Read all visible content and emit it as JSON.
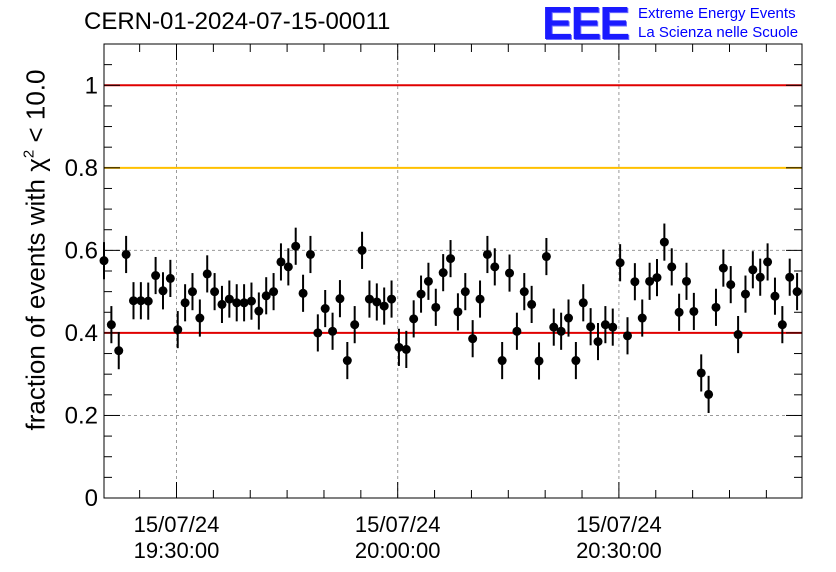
{
  "chart_data": {
    "type": "scatter",
    "title": "CERN-01-2024-07-15-00011",
    "ylabel": {
      "prefix": "fraction of events with ",
      "symbol": "χ",
      "sup": "2",
      "suffix": " < 10.0"
    },
    "xlabel": "",
    "xlim": [
      "19:20:10",
      "20:54:50"
    ],
    "ylim": [
      0,
      1.1
    ],
    "yticks": [
      "0",
      "0.2",
      "0.4",
      "0.6",
      "0.8",
      "1"
    ],
    "xticks": [
      {
        "time": "19:30:00",
        "date": "15/07/24",
        "clock": "19:30:00"
      },
      {
        "time": "20:00:00",
        "date": "15/07/24",
        "clock": "20:00:00"
      },
      {
        "time": "20:30:00",
        "date": "15/07/24",
        "clock": "20:30:00"
      }
    ],
    "grid": true,
    "reference_lines": [
      {
        "y": 1.0,
        "color": "#e00000"
      },
      {
        "y": 0.8,
        "color": "#ffc000"
      },
      {
        "y": 0.4,
        "color": "#e00000"
      }
    ],
    "series": [
      {
        "marker": "circle",
        "color": "#000000",
        "x": [
          "19:20:10",
          "19:21:10",
          "19:22:10",
          "19:23:10",
          "19:24:10",
          "19:25:10",
          "19:26:10",
          "19:27:10",
          "19:28:10",
          "19:29:10",
          "19:30:10",
          "19:31:10",
          "19:32:10",
          "19:33:10",
          "19:34:10",
          "19:35:10",
          "19:36:10",
          "19:37:10",
          "19:38:10",
          "19:39:10",
          "19:40:10",
          "19:41:10",
          "19:42:10",
          "19:43:10",
          "19:44:10",
          "19:45:10",
          "19:46:10",
          "19:47:10",
          "19:48:10",
          "19:49:10",
          "19:50:10",
          "19:51:10",
          "19:52:10",
          "19:53:10",
          "19:54:10",
          "19:55:10",
          "19:56:10",
          "19:57:10",
          "19:58:10",
          "19:59:10",
          "20:00:10",
          "20:01:10",
          "20:02:10",
          "20:03:10",
          "20:04:10",
          "20:05:10",
          "20:06:10",
          "20:07:10",
          "20:08:10",
          "20:09:10",
          "20:10:10",
          "20:11:10",
          "20:12:10",
          "20:13:10",
          "20:14:10",
          "20:15:10",
          "20:16:10",
          "20:17:10",
          "20:18:10",
          "20:19:10",
          "20:20:10",
          "20:21:10",
          "20:22:10",
          "20:23:10",
          "20:24:10",
          "20:25:10",
          "20:26:10",
          "20:27:10",
          "20:28:10",
          "20:29:10",
          "20:30:10",
          "20:31:10",
          "20:32:10",
          "20:33:10",
          "20:34:10",
          "20:35:10",
          "20:36:10",
          "20:37:10",
          "20:38:10",
          "20:39:10",
          "20:40:10",
          "20:41:10",
          "20:42:10",
          "20:43:10",
          "20:44:10",
          "20:45:10",
          "20:46:10",
          "20:47:10",
          "20:48:10",
          "20:49:10",
          "20:50:10",
          "20:51:10",
          "20:52:10",
          "20:53:10",
          "20:54:10"
        ],
        "y": [
          0.575,
          0.42,
          0.357,
          0.59,
          0.478,
          0.478,
          0.477,
          0.539,
          0.502,
          0.532,
          0.408,
          0.473,
          0.5,
          0.436,
          0.543,
          0.5,
          0.469,
          0.482,
          0.473,
          0.473,
          0.477,
          0.453,
          0.49,
          0.5,
          0.572,
          0.56,
          0.61,
          0.496,
          0.59,
          0.4,
          0.459,
          0.404,
          0.483,
          0.333,
          0.42,
          0.6,
          0.482,
          0.475,
          0.465,
          0.482,
          0.365,
          0.36,
          0.434,
          0.494,
          0.525,
          0.462,
          0.546,
          0.58,
          0.451,
          0.5,
          0.386,
          0.482,
          0.59,
          0.56,
          0.333,
          0.545,
          0.404,
          0.5,
          0.469,
          0.332,
          0.585,
          0.414,
          0.404,
          0.436,
          0.333,
          0.473,
          0.415,
          0.379,
          0.42,
          0.414,
          0.57,
          0.393,
          0.524,
          0.436,
          0.525,
          0.534,
          0.62,
          0.56,
          0.45,
          0.525,
          0.452,
          0.303,
          0.251,
          0.462,
          0.557,
          0.517,
          0.396,
          0.494,
          0.553,
          0.535,
          0.572,
          0.489,
          0.42,
          0.535,
          0.5
        ],
        "yerr": [
          0.045,
          0.045,
          0.045,
          0.045,
          0.045,
          0.045,
          0.045,
          0.045,
          0.045,
          0.045,
          0.045,
          0.045,
          0.045,
          0.045,
          0.045,
          0.045,
          0.045,
          0.045,
          0.045,
          0.045,
          0.045,
          0.045,
          0.045,
          0.045,
          0.045,
          0.045,
          0.045,
          0.045,
          0.045,
          0.045,
          0.045,
          0.045,
          0.045,
          0.045,
          0.045,
          0.045,
          0.045,
          0.045,
          0.045,
          0.045,
          0.045,
          0.045,
          0.045,
          0.045,
          0.045,
          0.045,
          0.045,
          0.045,
          0.045,
          0.045,
          0.045,
          0.045,
          0.045,
          0.045,
          0.045,
          0.045,
          0.045,
          0.045,
          0.045,
          0.045,
          0.045,
          0.045,
          0.045,
          0.045,
          0.045,
          0.045,
          0.045,
          0.045,
          0.045,
          0.045,
          0.045,
          0.045,
          0.045,
          0.045,
          0.045,
          0.045,
          0.045,
          0.045,
          0.045,
          0.045,
          0.045,
          0.045,
          0.045,
          0.045,
          0.045,
          0.045,
          0.045,
          0.045,
          0.045,
          0.045,
          0.045,
          0.045,
          0.045,
          0.045,
          0.045
        ]
      }
    ]
  },
  "logo": {
    "mark": "EEE",
    "line1": "Extreme Energy Events",
    "line2": "La Scienza nelle Scuole",
    "color": "#0000ff"
  }
}
